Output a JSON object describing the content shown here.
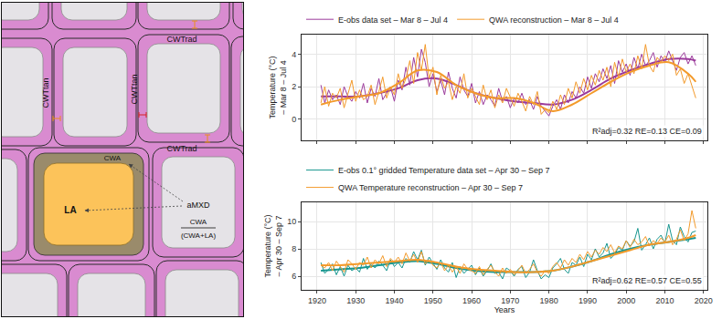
{
  "diagram": {
    "labels": {
      "cwt_rad": [
        "CWTrad",
        "CWTrad"
      ],
      "cwt_tan": [
        "CWTtan",
        "CWTtan"
      ],
      "cwa": "CWA",
      "la": "LA",
      "amxd": "aMXD",
      "amxd_formula": {
        "numerator": "CWA",
        "denominator": "(CWA+LA)"
      }
    }
  },
  "chart_data": [
    {
      "type": "line",
      "y_label": "Temperature (°C) – Mar 8 – Jul 4",
      "x": [
        1921,
        1922,
        1923,
        1924,
        1925,
        1926,
        1927,
        1928,
        1929,
        1930,
        1931,
        1932,
        1933,
        1934,
        1935,
        1936,
        1937,
        1938,
        1939,
        1940,
        1941,
        1942,
        1943,
        1944,
        1945,
        1946,
        1947,
        1948,
        1949,
        1950,
        1951,
        1952,
        1953,
        1954,
        1955,
        1956,
        1957,
        1958,
        1959,
        1960,
        1961,
        1962,
        1963,
        1964,
        1965,
        1966,
        1967,
        1968,
        1969,
        1970,
        1971,
        1972,
        1973,
        1974,
        1975,
        1976,
        1977,
        1978,
        1979,
        1980,
        1981,
        1982,
        1983,
        1984,
        1985,
        1986,
        1987,
        1988,
        1989,
        1990,
        1991,
        1992,
        1993,
        1994,
        1995,
        1996,
        1997,
        1998,
        1999,
        2000,
        2001,
        2002,
        2003,
        2004,
        2005,
        2006,
        2007,
        2008,
        2009,
        2010,
        2011,
        2012,
        2013,
        2014,
        2015,
        2016,
        2017,
        2018
      ],
      "series": [
        {
          "name": "E-obs data set – Mar 8 – Jul 4",
          "color": "#9b3a9b",
          "values": [
            2.1,
            1.0,
            1.8,
            1.2,
            1.5,
            0.9,
            2.0,
            1.4,
            1.1,
            1.7,
            1.3,
            2.2,
            1.0,
            1.9,
            1.4,
            2.5,
            1.2,
            1.6,
            2.0,
            1.1,
            2.4,
            1.8,
            3.2,
            2.1,
            3.8,
            2.6,
            4.3,
            3.5,
            2.0,
            2.8,
            1.7,
            2.4,
            1.5,
            2.9,
            1.9,
            1.3,
            2.6,
            1.8,
            1.4,
            2.2,
            1.0,
            1.7,
            0.9,
            1.5,
            1.2,
            0.8,
            1.9,
            1.1,
            1.4,
            0.7,
            1.3,
            1.0,
            1.6,
            0.9,
            1.2,
            0.6,
            1.4,
            0.8,
            0.5,
            0.2,
            0.8,
            1.2,
            0.6,
            1.5,
            1.0,
            1.7,
            1.3,
            2.0,
            1.6,
            2.6,
            1.9,
            2.8,
            2.3,
            3.1,
            2.5,
            3.3,
            2.2,
            3.6,
            2.9,
            3.4,
            2.7,
            3.8,
            3.1,
            4.0,
            3.3,
            3.6,
            4.1,
            3.2,
            3.9,
            3.5,
            4.2,
            3.6,
            3.0,
            3.8,
            4.1,
            3.4,
            3.9,
            3.3
          ],
          "smooth": {
            "x": [
              1921,
              1926,
              1931,
              1936,
              1941,
              1946,
              1951,
              1956,
              1961,
              1966,
              1971,
              1976,
              1981,
              1986,
              1991,
              1996,
              2001,
              2006,
              2011,
              2016,
              2018
            ],
            "values": [
              1.4,
              1.4,
              1.4,
              1.6,
              1.9,
              2.4,
              2.5,
              2.1,
              1.6,
              1.3,
              1.1,
              1.0,
              0.9,
              1.2,
              1.8,
              2.5,
              3.0,
              3.4,
              3.7,
              3.7,
              3.6
            ]
          }
        },
        {
          "name": "QWA reconstruction – Mar 8 – Jul 4",
          "color": "#f39a2b",
          "values": [
            1.0,
            2.0,
            0.8,
            1.6,
            1.3,
            1.9,
            0.7,
            1.5,
            2.4,
            1.1,
            1.8,
            1.2,
            1.4,
            2.1,
            0.9,
            1.7,
            2.6,
            1.3,
            2.0,
            1.5,
            2.8,
            1.9,
            2.5,
            3.6,
            2.2,
            4.1,
            3.0,
            4.6,
            2.5,
            3.2,
            1.5,
            2.7,
            1.9,
            2.3,
            1.2,
            2.0,
            1.6,
            2.8,
            1.3,
            1.9,
            1.4,
            0.9,
            2.1,
            1.2,
            1.8,
            0.7,
            1.5,
            1.0,
            1.9,
            1.3,
            0.8,
            1.6,
            1.1,
            0.5,
            1.4,
            0.9,
            1.7,
            0.3,
            0.6,
            0.4,
            1.1,
            0.6,
            1.5,
            0.9,
            1.9,
            1.3,
            2.3,
            1.6,
            2.5,
            1.8,
            2.7,
            2.1,
            3.0,
            2.4,
            3.2,
            2.0,
            3.5,
            2.6,
            3.7,
            2.9,
            3.4,
            2.8,
            3.9,
            3.1,
            4.6,
            3.3,
            2.9,
            3.8,
            3.5,
            3.9,
            3.6,
            4.0,
            2.7,
            3.1,
            2.2,
            2.8,
            2.0,
            1.3
          ],
          "smooth": {
            "x": [
              1921,
              1926,
              1931,
              1936,
              1941,
              1946,
              1951,
              1956,
              1961,
              1966,
              1971,
              1976,
              1981,
              1986,
              1991,
              1996,
              2001,
              2006,
              2011,
              2016,
              2018
            ],
            "values": [
              0.9,
              1.2,
              1.4,
              1.6,
              2.2,
              3.0,
              2.9,
              2.1,
              1.6,
              1.3,
              1.3,
              1.0,
              0.5,
              0.9,
              1.6,
              2.3,
              2.9,
              3.3,
              3.5,
              2.8,
              2.3
            ]
          }
        }
      ],
      "xlim": [
        1916,
        2021
      ],
      "xticks": [
        1920,
        1930,
        1940,
        1950,
        1960,
        1970,
        1980,
        1990,
        2000,
        2010,
        2020
      ],
      "ylim": [
        -1.3,
        5.2
      ],
      "yticks": [
        0,
        2,
        4
      ],
      "grid": true,
      "legend": "top",
      "tick_labels": "y",
      "annotations": [
        "R²adj=0.32 RE=0.13 CE=0.09"
      ]
    },
    {
      "type": "line",
      "x_label": "Years",
      "y_label": "Temperature (°C) – Apr 30 – Sep 7",
      "x": [
        1921,
        1922,
        1923,
        1924,
        1925,
        1926,
        1927,
        1928,
        1929,
        1930,
        1931,
        1932,
        1933,
        1934,
        1935,
        1936,
        1937,
        1938,
        1939,
        1940,
        1941,
        1942,
        1943,
        1944,
        1945,
        1946,
        1947,
        1948,
        1949,
        1950,
        1951,
        1952,
        1953,
        1954,
        1955,
        1956,
        1957,
        1958,
        1959,
        1960,
        1961,
        1962,
        1963,
        1964,
        1965,
        1966,
        1967,
        1968,
        1969,
        1970,
        1971,
        1972,
        1973,
        1974,
        1975,
        1976,
        1977,
        1978,
        1979,
        1980,
        1981,
        1982,
        1983,
        1984,
        1985,
        1986,
        1987,
        1988,
        1989,
        1990,
        1991,
        1992,
        1993,
        1994,
        1995,
        1996,
        1997,
        1998,
        1999,
        2000,
        2001,
        2002,
        2003,
        2004,
        2005,
        2006,
        2007,
        2008,
        2009,
        2010,
        2011,
        2012,
        2013,
        2014,
        2015,
        2016,
        2017,
        2018
      ],
      "series": [
        {
          "name": "E-obs 0.1° gridded Temperature data set – Apr 30 – Sep 7",
          "color": "#17968f",
          "values": [
            7.0,
            6.2,
            6.5,
            6.9,
            6.1,
            6.7,
            6.0,
            6.8,
            6.4,
            6.6,
            6.3,
            7.3,
            6.5,
            6.9,
            6.6,
            7.1,
            6.8,
            6.4,
            7.2,
            6.7,
            7.0,
            6.6,
            7.3,
            7.0,
            7.8,
            7.2,
            7.9,
            6.8,
            7.4,
            6.9,
            6.5,
            7.2,
            6.6,
            6.3,
            7.0,
            5.9,
            6.7,
            6.2,
            6.5,
            6.8,
            6.1,
            6.6,
            6.0,
            6.4,
            6.9,
            6.2,
            6.3,
            5.8,
            6.6,
            6.4,
            6.0,
            6.5,
            6.7,
            5.9,
            6.3,
            7.2,
            6.4,
            5.8,
            6.1,
            5.9,
            6.6,
            6.9,
            7.3,
            6.5,
            6.2,
            7.0,
            6.8,
            7.4,
            6.7,
            7.6,
            7.2,
            8.0,
            7.4,
            7.7,
            8.4,
            7.3,
            7.6,
            8.1,
            7.9,
            8.6,
            8.2,
            8.5,
            9.5,
            7.9,
            8.3,
            8.8,
            8.0,
            8.7,
            9.0,
            8.4,
            9.8,
            8.6,
            8.3,
            9.6,
            8.9,
            8.5,
            9.2,
            9.3
          ],
          "smooth": {
            "x": [
              1921,
              1926,
              1931,
              1936,
              1941,
              1946,
              1951,
              1956,
              1961,
              1966,
              1971,
              1976,
              1981,
              1986,
              1991,
              1996,
              2001,
              2006,
              2011,
              2016,
              2018
            ],
            "values": [
              6.4,
              6.5,
              6.6,
              6.8,
              7.0,
              7.1,
              6.9,
              6.6,
              6.4,
              6.3,
              6.3,
              6.3,
              6.4,
              6.7,
              7.1,
              7.6,
              8.0,
              8.3,
              8.5,
              8.7,
              8.8
            ]
          }
        },
        {
          "name": "QWA Temperature reconstruction – Apr 30 – Sep 7",
          "color": "#f39a2b",
          "values": [
            6.8,
            6.6,
            7.0,
            6.4,
            7.1,
            6.7,
            6.3,
            7.2,
            6.9,
            6.5,
            7.0,
            6.8,
            7.4,
            6.6,
            7.2,
            6.9,
            7.5,
            6.7,
            7.3,
            7.0,
            7.4,
            6.9,
            7.7,
            7.1,
            7.6,
            7.0,
            7.8,
            6.9,
            7.2,
            6.8,
            6.6,
            7.0,
            6.4,
            6.8,
            6.3,
            6.7,
            6.2,
            6.9,
            6.5,
            6.4,
            6.2,
            6.7,
            6.1,
            6.5,
            6.8,
            6.3,
            6.0,
            6.6,
            6.2,
            6.5,
            6.1,
            6.4,
            6.8,
            6.2,
            6.5,
            6.9,
            6.3,
            6.0,
            6.4,
            6.2,
            6.7,
            7.0,
            6.6,
            7.2,
            6.8,
            7.3,
            7.0,
            7.6,
            7.2,
            7.8,
            7.4,
            7.9,
            7.6,
            8.1,
            7.8,
            8.3,
            7.7,
            8.2,
            8.0,
            8.6,
            8.1,
            8.7,
            8.3,
            8.5,
            8.9,
            8.2,
            8.6,
            8.4,
            8.8,
            8.5,
            9.0,
            8.3,
            8.7,
            9.4,
            8.6,
            9.1,
            10.8,
            9.5
          ],
          "smooth": {
            "x": [
              1921,
              1926,
              1931,
              1936,
              1941,
              1946,
              1951,
              1956,
              1961,
              1966,
              1971,
              1976,
              1981,
              1986,
              1991,
              1996,
              2001,
              2006,
              2011,
              2016,
              2018
            ],
            "values": [
              6.8,
              6.8,
              6.9,
              7.0,
              7.1,
              7.2,
              7.0,
              6.7,
              6.5,
              6.4,
              6.3,
              6.3,
              6.4,
              6.7,
              7.1,
              7.5,
              7.9,
              8.3,
              8.5,
              8.8,
              9.0
            ]
          }
        }
      ],
      "xlim": [
        1916,
        2021
      ],
      "xticks": [
        1920,
        1930,
        1940,
        1950,
        1960,
        1970,
        1980,
        1990,
        2000,
        2010,
        2020
      ],
      "ylim": [
        5.0,
        11.4
      ],
      "yticks": [
        6,
        8,
        10
      ],
      "grid": true,
      "legend": "top",
      "tick_labels": true,
      "annotations": [
        "R²adj=0.62 RE=0.57 CE=0.55"
      ]
    }
  ]
}
